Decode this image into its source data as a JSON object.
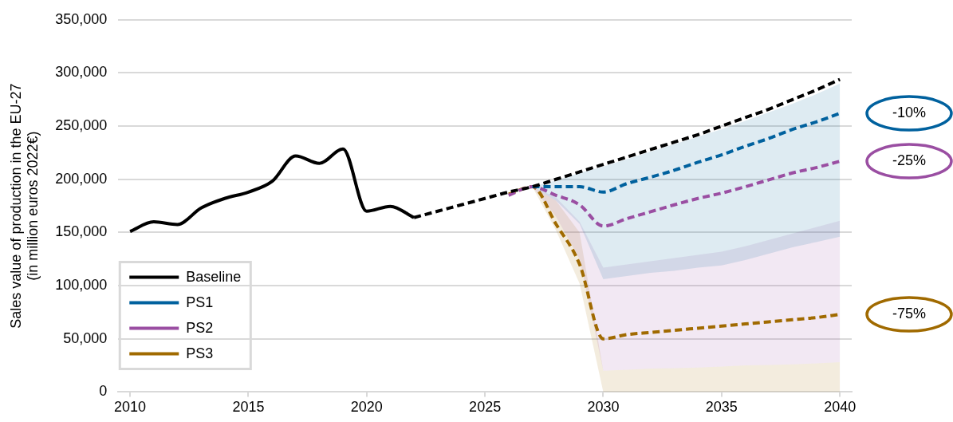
{
  "chart_data": {
    "type": "line",
    "ylabel": "Sales value of production in the EU-27\n(in million euros 2022€)",
    "xlim": [
      2009.5,
      2040.5
    ],
    "xticks": [
      2010,
      2015,
      2020,
      2025,
      2030,
      2035,
      2040
    ],
    "ylim": [
      0,
      350000
    ],
    "yticks": [
      {
        "value": 0,
        "label": "0"
      },
      {
        "value": 50000,
        "label": "50,000"
      },
      {
        "value": 100000,
        "label": "100,000"
      },
      {
        "value": 150000,
        "label": "150,000"
      },
      {
        "value": 200000,
        "label": "200,000"
      },
      {
        "value": 250000,
        "label": "250,000"
      },
      {
        "value": 300000,
        "label": "300,000"
      },
      {
        "value": 350000,
        "label": "350,000"
      }
    ],
    "grid": "y",
    "legend": "bottom left",
    "marker": "none",
    "series": [
      {
        "name": "Baseline",
        "color": "#000000",
        "line_style": "solid",
        "x": [
          2010,
          2011,
          2012,
          2013,
          2014,
          2015,
          2016,
          2017,
          2018,
          2019,
          2020,
          2021,
          2022
        ],
        "values": [
          151000,
          160000,
          157500,
          173000,
          182000,
          188000,
          198000,
          222000,
          215000,
          228500,
          170000,
          174600,
          164000
        ]
      },
      {
        "color": "#000000",
        "line_style": "dashed",
        "x": [
          2022,
          2023,
          2024,
          2025,
          2026,
          2027,
          2028,
          2029,
          2030,
          2031,
          2032,
          2033,
          2034,
          2035,
          2036,
          2037,
          2038,
          2039,
          2040
        ],
        "values": [
          164000,
          170000,
          176000,
          182000,
          188000,
          193000,
          200000,
          207000,
          214000,
          221000,
          228000,
          235000,
          242000,
          250000,
          258000,
          266000,
          275000,
          284000,
          294000
        ]
      },
      {
        "name": "PS1",
        "color": "#00619e",
        "line_style": "dashed",
        "x": [
          2027,
          2028,
          2029,
          2030,
          2031,
          2032,
          2033,
          2034,
          2035,
          2036,
          2037,
          2038,
          2039,
          2040
        ],
        "values": [
          193000,
          193000,
          193000,
          188000,
          196000,
          202000,
          208500,
          216000,
          223000,
          231000,
          238500,
          247000,
          254000,
          262000
        ],
        "lower": [
          193000,
          180000,
          158000,
          106000,
          109000,
          112000,
          114000,
          117000,
          119000,
          124000,
          130000,
          136000,
          141000,
          146000
        ],
        "upper": [
          193000,
          199000,
          206000,
          212000,
          219000,
          226000,
          233000,
          240000,
          247000,
          255000,
          263000,
          271000,
          280000,
          290000
        ]
      },
      {
        "name": "PS2",
        "color": "#9a4ea2",
        "line_style": "dashed",
        "x": [
          2026,
          2027,
          2028,
          2029,
          2030,
          2031,
          2032,
          2033,
          2034,
          2035,
          2036,
          2037,
          2038,
          2039,
          2040
        ],
        "values": [
          185000,
          193000,
          185000,
          176000,
          156000,
          163000,
          169500,
          176000,
          182000,
          187000,
          193000,
          199500,
          206000,
          211000,
          217000
        ],
        "lower": [
          null,
          193000,
          165000,
          125000,
          20000,
          21000,
          22000,
          22500,
          23000,
          24000,
          25000,
          25500,
          26000,
          27000,
          28000
        ],
        "upper": [
          null,
          193000,
          183000,
          160000,
          117000,
          120000,
          123000,
          126000,
          129000,
          132000,
          137000,
          143000,
          149000,
          155000,
          161000
        ]
      },
      {
        "name": "PS3",
        "color": "#a06a00",
        "line_style": "dashed",
        "x": [
          2026,
          2027,
          2028,
          2029,
          2030,
          2031,
          2032,
          2033,
          2034,
          2035,
          2036,
          2037,
          2038,
          2039,
          2040
        ],
        "values": [
          186000,
          193000,
          158000,
          120000,
          50000,
          54000,
          56000,
          58000,
          60000,
          62000,
          64000,
          66000,
          68000,
          70000,
          73000
        ],
        "lower": [
          null,
          193000,
          152000,
          102000,
          0,
          0,
          0,
          0,
          0,
          0,
          0,
          0,
          0,
          0,
          0
        ],
        "upper": [
          null,
          193000,
          180000,
          150000,
          20000,
          21000,
          22000,
          22500,
          23000,
          24000,
          25000,
          25500,
          26000,
          27000,
          28000
        ]
      }
    ],
    "annotations": [
      "-10%",
      "-25%",
      "-75%"
    ]
  }
}
